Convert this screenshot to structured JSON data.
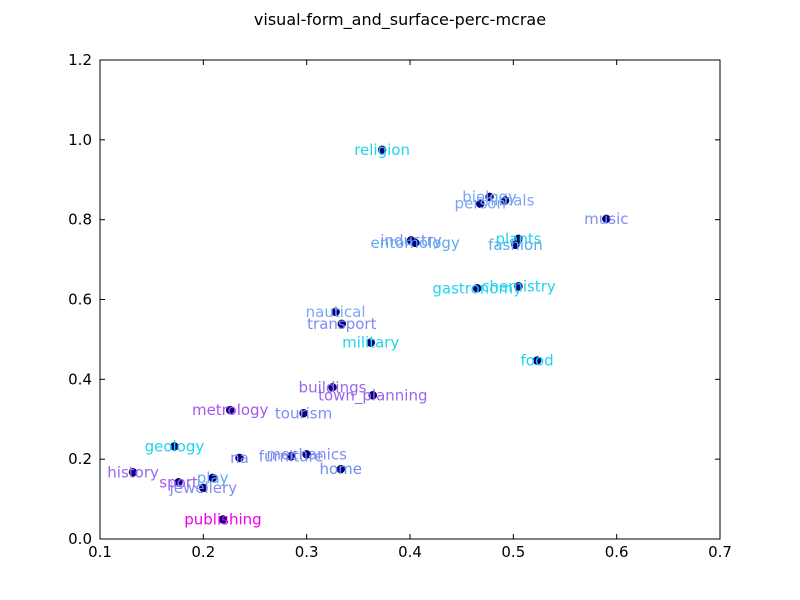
{
  "chart_data": {
    "type": "scatter",
    "title": "visual-form_and_surface-perc-mcrae",
    "xlabel": "",
    "ylabel": "",
    "xlim": [
      0.1,
      0.7
    ],
    "ylim": [
      0.0,
      1.2
    ],
    "xticks": [
      "0.1",
      "0.2",
      "0.3",
      "0.4",
      "0.5",
      "0.6",
      "0.7"
    ],
    "yticks": [
      "0.0",
      "0.2",
      "0.4",
      "0.6",
      "0.8",
      "1.0",
      "1.2"
    ],
    "grid": false,
    "marker_color": "#00008b",
    "points": [
      {
        "label": "religion",
        "x": 0.373,
        "y": 0.975,
        "color": "#22d3ee"
      },
      {
        "label": "biology",
        "x": 0.477,
        "y": 0.857,
        "color": "#7aa7f5"
      },
      {
        "label": "animals",
        "x": 0.492,
        "y": 0.848,
        "color": "#7aa7f5"
      },
      {
        "label": "person",
        "x": 0.468,
        "y": 0.84,
        "color": "#7aa7f5"
      },
      {
        "label": "music",
        "x": 0.59,
        "y": 0.802,
        "color": "#7f8cf2"
      },
      {
        "label": "industry",
        "x": 0.401,
        "y": 0.748,
        "color": "#7f8cf2"
      },
      {
        "label": "entomology",
        "x": 0.405,
        "y": 0.742,
        "color": "#5aabf0"
      },
      {
        "label": "plants",
        "x": 0.505,
        "y": 0.752,
        "color": "#22d3ee"
      },
      {
        "label": "fashion",
        "x": 0.502,
        "y": 0.737,
        "color": "#5aabf0"
      },
      {
        "label": "gastronomy",
        "x": 0.465,
        "y": 0.628,
        "color": "#22d3ee"
      },
      {
        "label": "chemistry",
        "x": 0.505,
        "y": 0.633,
        "color": "#22d3ee"
      },
      {
        "label": "nautical",
        "x": 0.328,
        "y": 0.569,
        "color": "#7aa7f5"
      },
      {
        "label": "transport",
        "x": 0.334,
        "y": 0.539,
        "color": "#7f8cf2"
      },
      {
        "label": "military",
        "x": 0.362,
        "y": 0.492,
        "color": "#22d3ee"
      },
      {
        "label": "food",
        "x": 0.523,
        "y": 0.447,
        "color": "#22d3ee"
      },
      {
        "label": "buildings",
        "x": 0.325,
        "y": 0.38,
        "color": "#9966ee"
      },
      {
        "label": "town_planning",
        "x": 0.364,
        "y": 0.36,
        "color": "#9966ee"
      },
      {
        "label": "metrology",
        "x": 0.226,
        "y": 0.323,
        "color": "#a855f7"
      },
      {
        "label": "tourism",
        "x": 0.297,
        "y": 0.315,
        "color": "#7f8cf2"
      },
      {
        "label": "geology",
        "x": 0.172,
        "y": 0.232,
        "color": "#22d3ee"
      },
      {
        "label": "na",
        "x": 0.235,
        "y": 0.203,
        "color": "#7f8cf2"
      },
      {
        "label": "furniture",
        "x": 0.285,
        "y": 0.207,
        "color": "#7f8cf2"
      },
      {
        "label": "mechanics",
        "x": 0.3,
        "y": 0.212,
        "color": "#7f8cf2"
      },
      {
        "label": "home",
        "x": 0.333,
        "y": 0.175,
        "color": "#6a8ff0"
      },
      {
        "label": "history",
        "x": 0.132,
        "y": 0.167,
        "color": "#9966ee"
      },
      {
        "label": "play",
        "x": 0.209,
        "y": 0.153,
        "color": "#5aabf0"
      },
      {
        "label": "sport",
        "x": 0.176,
        "y": 0.142,
        "color": "#a855f7"
      },
      {
        "label": "jewellery",
        "x": 0.2,
        "y": 0.128,
        "color": "#7f8cf2"
      },
      {
        "label": "publishing",
        "x": 0.219,
        "y": 0.049,
        "color": "#ee00ee"
      }
    ]
  }
}
